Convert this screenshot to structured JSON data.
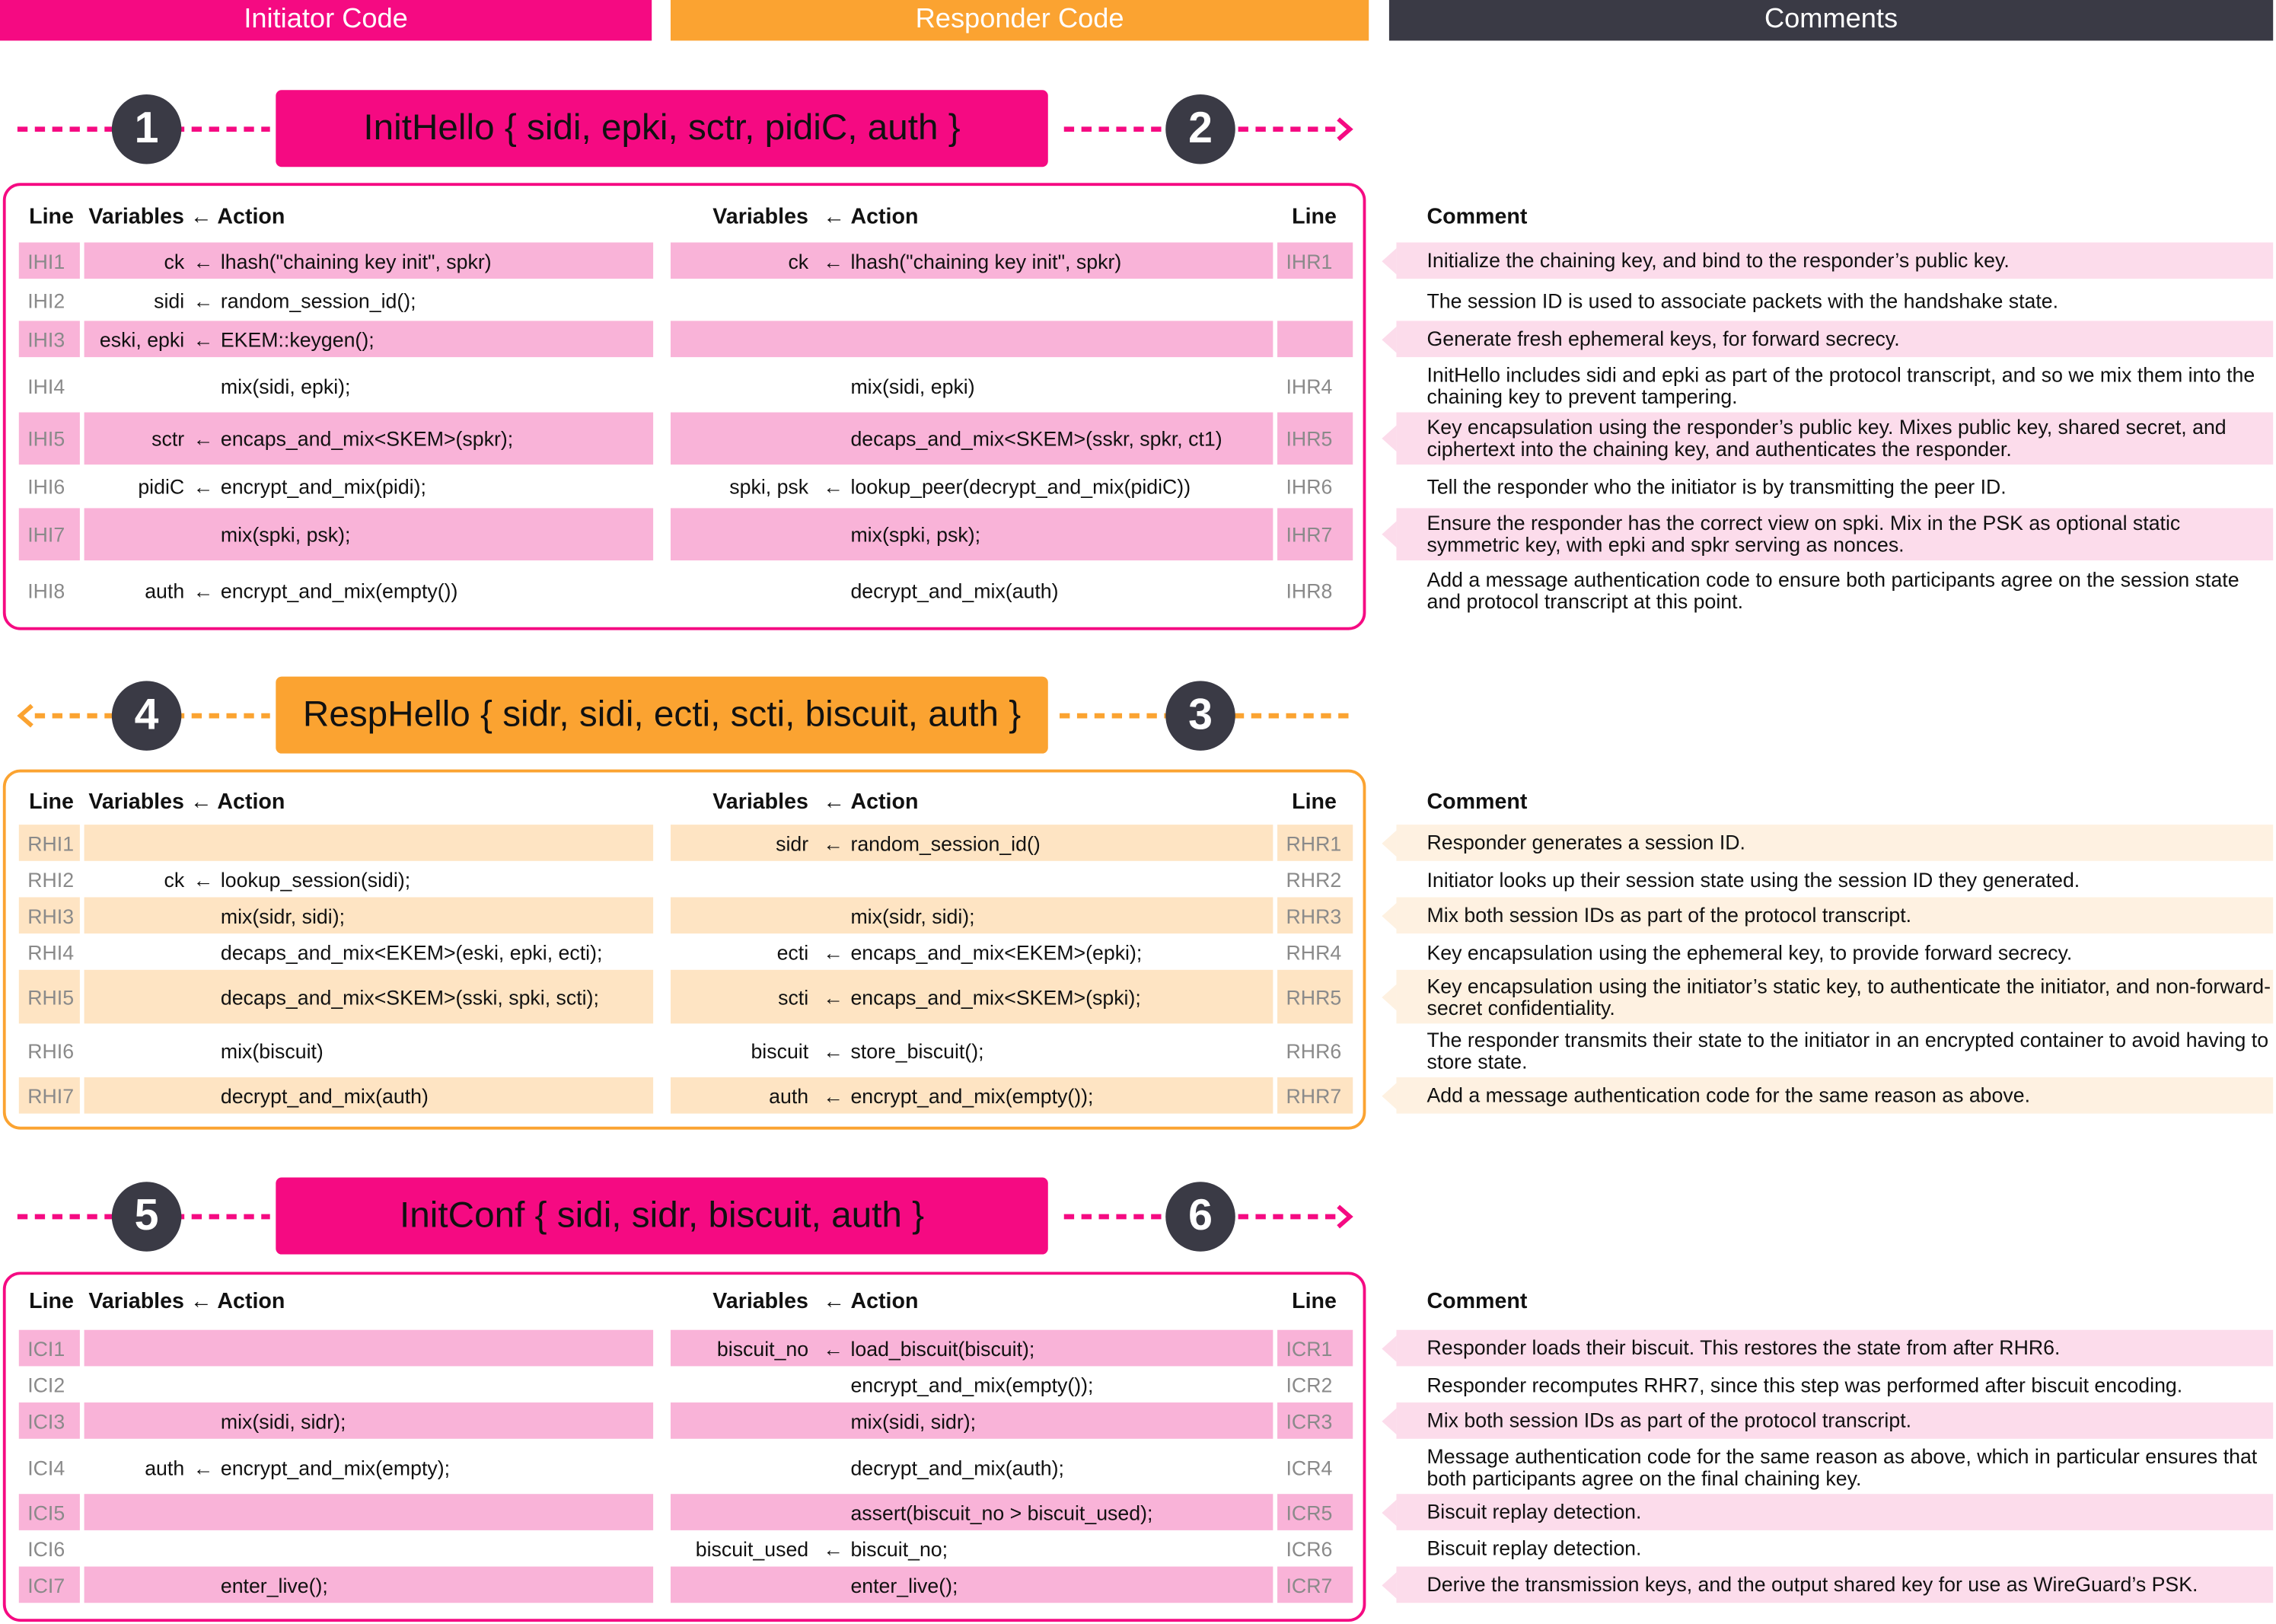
{
  "columns": {
    "initiator": "Initiator Code",
    "responder": "Responder Code",
    "comments": "Comments"
  },
  "colors": {
    "pink": "#F50A82",
    "pink_light": "#F9B3D8",
    "pink_comment": "#FCDCEB",
    "orange": "#FBA331",
    "orange_light": "#FEE4C3",
    "orange_comment": "#FEF1E1",
    "dark": "#3A3A45"
  },
  "table_headers": {
    "line": "Line",
    "vars_action": "Variables ← Action",
    "variables": "Variables",
    "arrow": "←",
    "action": "Action",
    "comment": "Comment"
  },
  "messages": [
    {
      "label": "InitHello { sidi, epki, sctr, pidiC, auth }",
      "left_step": "1",
      "right_step": "2",
      "direction": "right",
      "color": "pink"
    },
    {
      "label": "RespHello { sidr, sidi, ecti, scti, biscuit, auth }",
      "left_step": "4",
      "right_step": "3",
      "direction": "left",
      "color": "orange"
    },
    {
      "label": "InitConf { sidi, sidr, biscuit, auth }",
      "left_step": "5",
      "right_step": "6",
      "direction": "right",
      "color": "pink"
    }
  ],
  "tables": [
    {
      "rows": [
        {
          "li": "IHI1",
          "vi": "ck",
          "ai": "lhash(\"chaining key init\", spkr)",
          "vr": "ck",
          "ar": "lhash(\"chaining key init\", spkr)",
          "lr": "IHR1",
          "comment": "Initialize the chaining key, and bind to the responder’s public key.",
          "hl": true
        },
        {
          "li": "IHI2",
          "vi": "sidi",
          "ai": "random_session_id();",
          "vr": "",
          "ar": "",
          "lr": "",
          "comment": "The session ID is used to associate packets with the handshake state.",
          "hl": false
        },
        {
          "li": "IHI3",
          "vi": "eski, epki",
          "ai": "EKEM::keygen();",
          "vr": "",
          "ar": "",
          "lr": "",
          "comment": "Generate fresh ephemeral keys, for forward secrecy.",
          "hl": true
        },
        {
          "li": "IHI4",
          "vi": "",
          "ai": "mix(sidi, epki);",
          "vr": "",
          "ar": "mix(sidi, epki)",
          "lr": "IHR4",
          "comment": "InitHello includes sidi and epki as part of the protocol transcript, and so we mix them into the chaining key to prevent tampering.",
          "hl": false
        },
        {
          "li": "IHI5",
          "vi": "sctr",
          "ai": "encaps_and_mix<SKEM>(spkr);",
          "vr": "",
          "ar": "decaps_and_mix<SKEM>(sskr, spkr, ct1)",
          "lr": "IHR5",
          "comment": "Key encapsulation using the responder’s public key. Mixes public key, shared secret, and ciphertext into the chaining key, and authenticates the responder.",
          "hl": true
        },
        {
          "li": "IHI6",
          "vi": "pidiC",
          "ai": "encrypt_and_mix(pidi);",
          "vr": "spki, psk",
          "ar": "lookup_peer(decrypt_and_mix(pidiC))",
          "lr": "IHR6",
          "comment": "Tell the responder who the initiator is by transmitting the peer ID.",
          "hl": false
        },
        {
          "li": "IHI7",
          "vi": "",
          "ai": "mix(spki, psk);",
          "vr": "",
          "ar": "mix(spki, psk);",
          "lr": "IHR7",
          "comment": "Ensure the responder has the correct view on spki. Mix in the PSK as optional static symmetric key, with epki and spkr serving as nonces.",
          "hl": true
        },
        {
          "li": "IHI8",
          "vi": "auth",
          "ai": "encrypt_and_mix(empty())",
          "vr": "",
          "ar": "decrypt_and_mix(auth)",
          "lr": "IHR8",
          "comment": "Add a message authentication code to ensure both participants agree on the session state and protocol transcript at this point.",
          "hl": false
        }
      ]
    },
    {
      "rows": [
        {
          "li": "RHI1",
          "vi": "",
          "ai": "",
          "vr": "sidr",
          "ar": "random_session_id()",
          "lr": "RHR1",
          "comment": "Responder generates a session ID.",
          "hl": true
        },
        {
          "li": "RHI2",
          "vi": "ck",
          "ai": "lookup_session(sidi);",
          "vr": "",
          "ar": "",
          "lr": "RHR2",
          "comment": "Initiator looks up their session state using the session ID they generated.",
          "hl": false
        },
        {
          "li": "RHI3",
          "vi": "",
          "ai": "mix(sidr, sidi);",
          "vr": "",
          "ar": "mix(sidr, sidi);",
          "lr": "RHR3",
          "comment": "Mix both session IDs as part of the protocol transcript.",
          "hl": true
        },
        {
          "li": "RHI4",
          "vi": "",
          "ai": "decaps_and_mix<EKEM>(eski, epki, ecti);",
          "vr": "ecti",
          "ar": "encaps_and_mix<EKEM>(epki);",
          "lr": "RHR4",
          "comment": "Key encapsulation using the ephemeral key, to provide forward secrecy.",
          "hl": false
        },
        {
          "li": "RHI5",
          "vi": "",
          "ai": "decaps_and_mix<SKEM>(sski, spki, scti);",
          "vr": "scti",
          "ar": "encaps_and_mix<SKEM>(spki);",
          "lr": "RHR5",
          "comment": "Key encapsulation using the initiator’s static key, to authenticate the initiator, and non-forward-secret confidentiality.",
          "hl": true
        },
        {
          "li": "RHI6",
          "vi": "",
          "ai": "mix(biscuit)",
          "vr": "biscuit",
          "ar": "store_biscuit();",
          "lr": "RHR6",
          "comment": "The responder transmits their state to the initiator in an encrypted container to avoid having to store state.",
          "hl": false
        },
        {
          "li": "RHI7",
          "vi": "",
          "ai": "decrypt_and_mix(auth)",
          "vr": "auth",
          "ar": "encrypt_and_mix(empty());",
          "lr": "RHR7",
          "comment": "Add a message authentication code for the same reason as above.",
          "hl": true
        }
      ]
    },
    {
      "rows": [
        {
          "li": "ICI1",
          "vi": "",
          "ai": "",
          "vr": "biscuit_no",
          "ar": "load_biscuit(biscuit);",
          "lr": "ICR1",
          "comment": "Responder loads their biscuit. This restores the state from after RHR6.",
          "hl": true
        },
        {
          "li": "ICI2",
          "vi": "",
          "ai": "",
          "vr": "",
          "ar": "encrypt_and_mix(empty());",
          "lr": "ICR2",
          "comment": "Responder recomputes RHR7, since this step was performed after biscuit encoding.",
          "hl": false
        },
        {
          "li": "ICI3",
          "vi": "",
          "ai": "mix(sidi, sidr);",
          "vr": "",
          "ar": "mix(sidi, sidr);",
          "lr": "ICR3",
          "comment": "Mix both session IDs as part of the protocol transcript.",
          "hl": true
        },
        {
          "li": "ICI4",
          "vi": "auth",
          "ai": "encrypt_and_mix(empty);",
          "vr": "",
          "ar": "decrypt_and_mix(auth);",
          "lr": "ICR4",
          "comment": "Message authentication code for the same reason as above, which in particular ensures that both participants agree on the final chaining key.",
          "hl": false
        },
        {
          "li": "ICI5",
          "vi": "",
          "ai": "",
          "vr": "",
          "ar": "assert(biscuit_no > biscuit_used);",
          "lr": "ICR5",
          "comment": "Biscuit replay detection.",
          "hl": true
        },
        {
          "li": "ICI6",
          "vi": "",
          "ai": "",
          "vr": "biscuit_used",
          "ar": "biscuit_no;",
          "lr": "ICR6",
          "comment": "Biscuit replay detection.",
          "hl": false
        },
        {
          "li": "ICI7",
          "vi": "",
          "ai": "enter_live();",
          "vr": "",
          "ar": "enter_live();",
          "lr": "ICR7",
          "comment": "Derive the transmission keys, and the output shared key for use as WireGuard’s PSK.",
          "hl": true
        }
      ]
    }
  ]
}
